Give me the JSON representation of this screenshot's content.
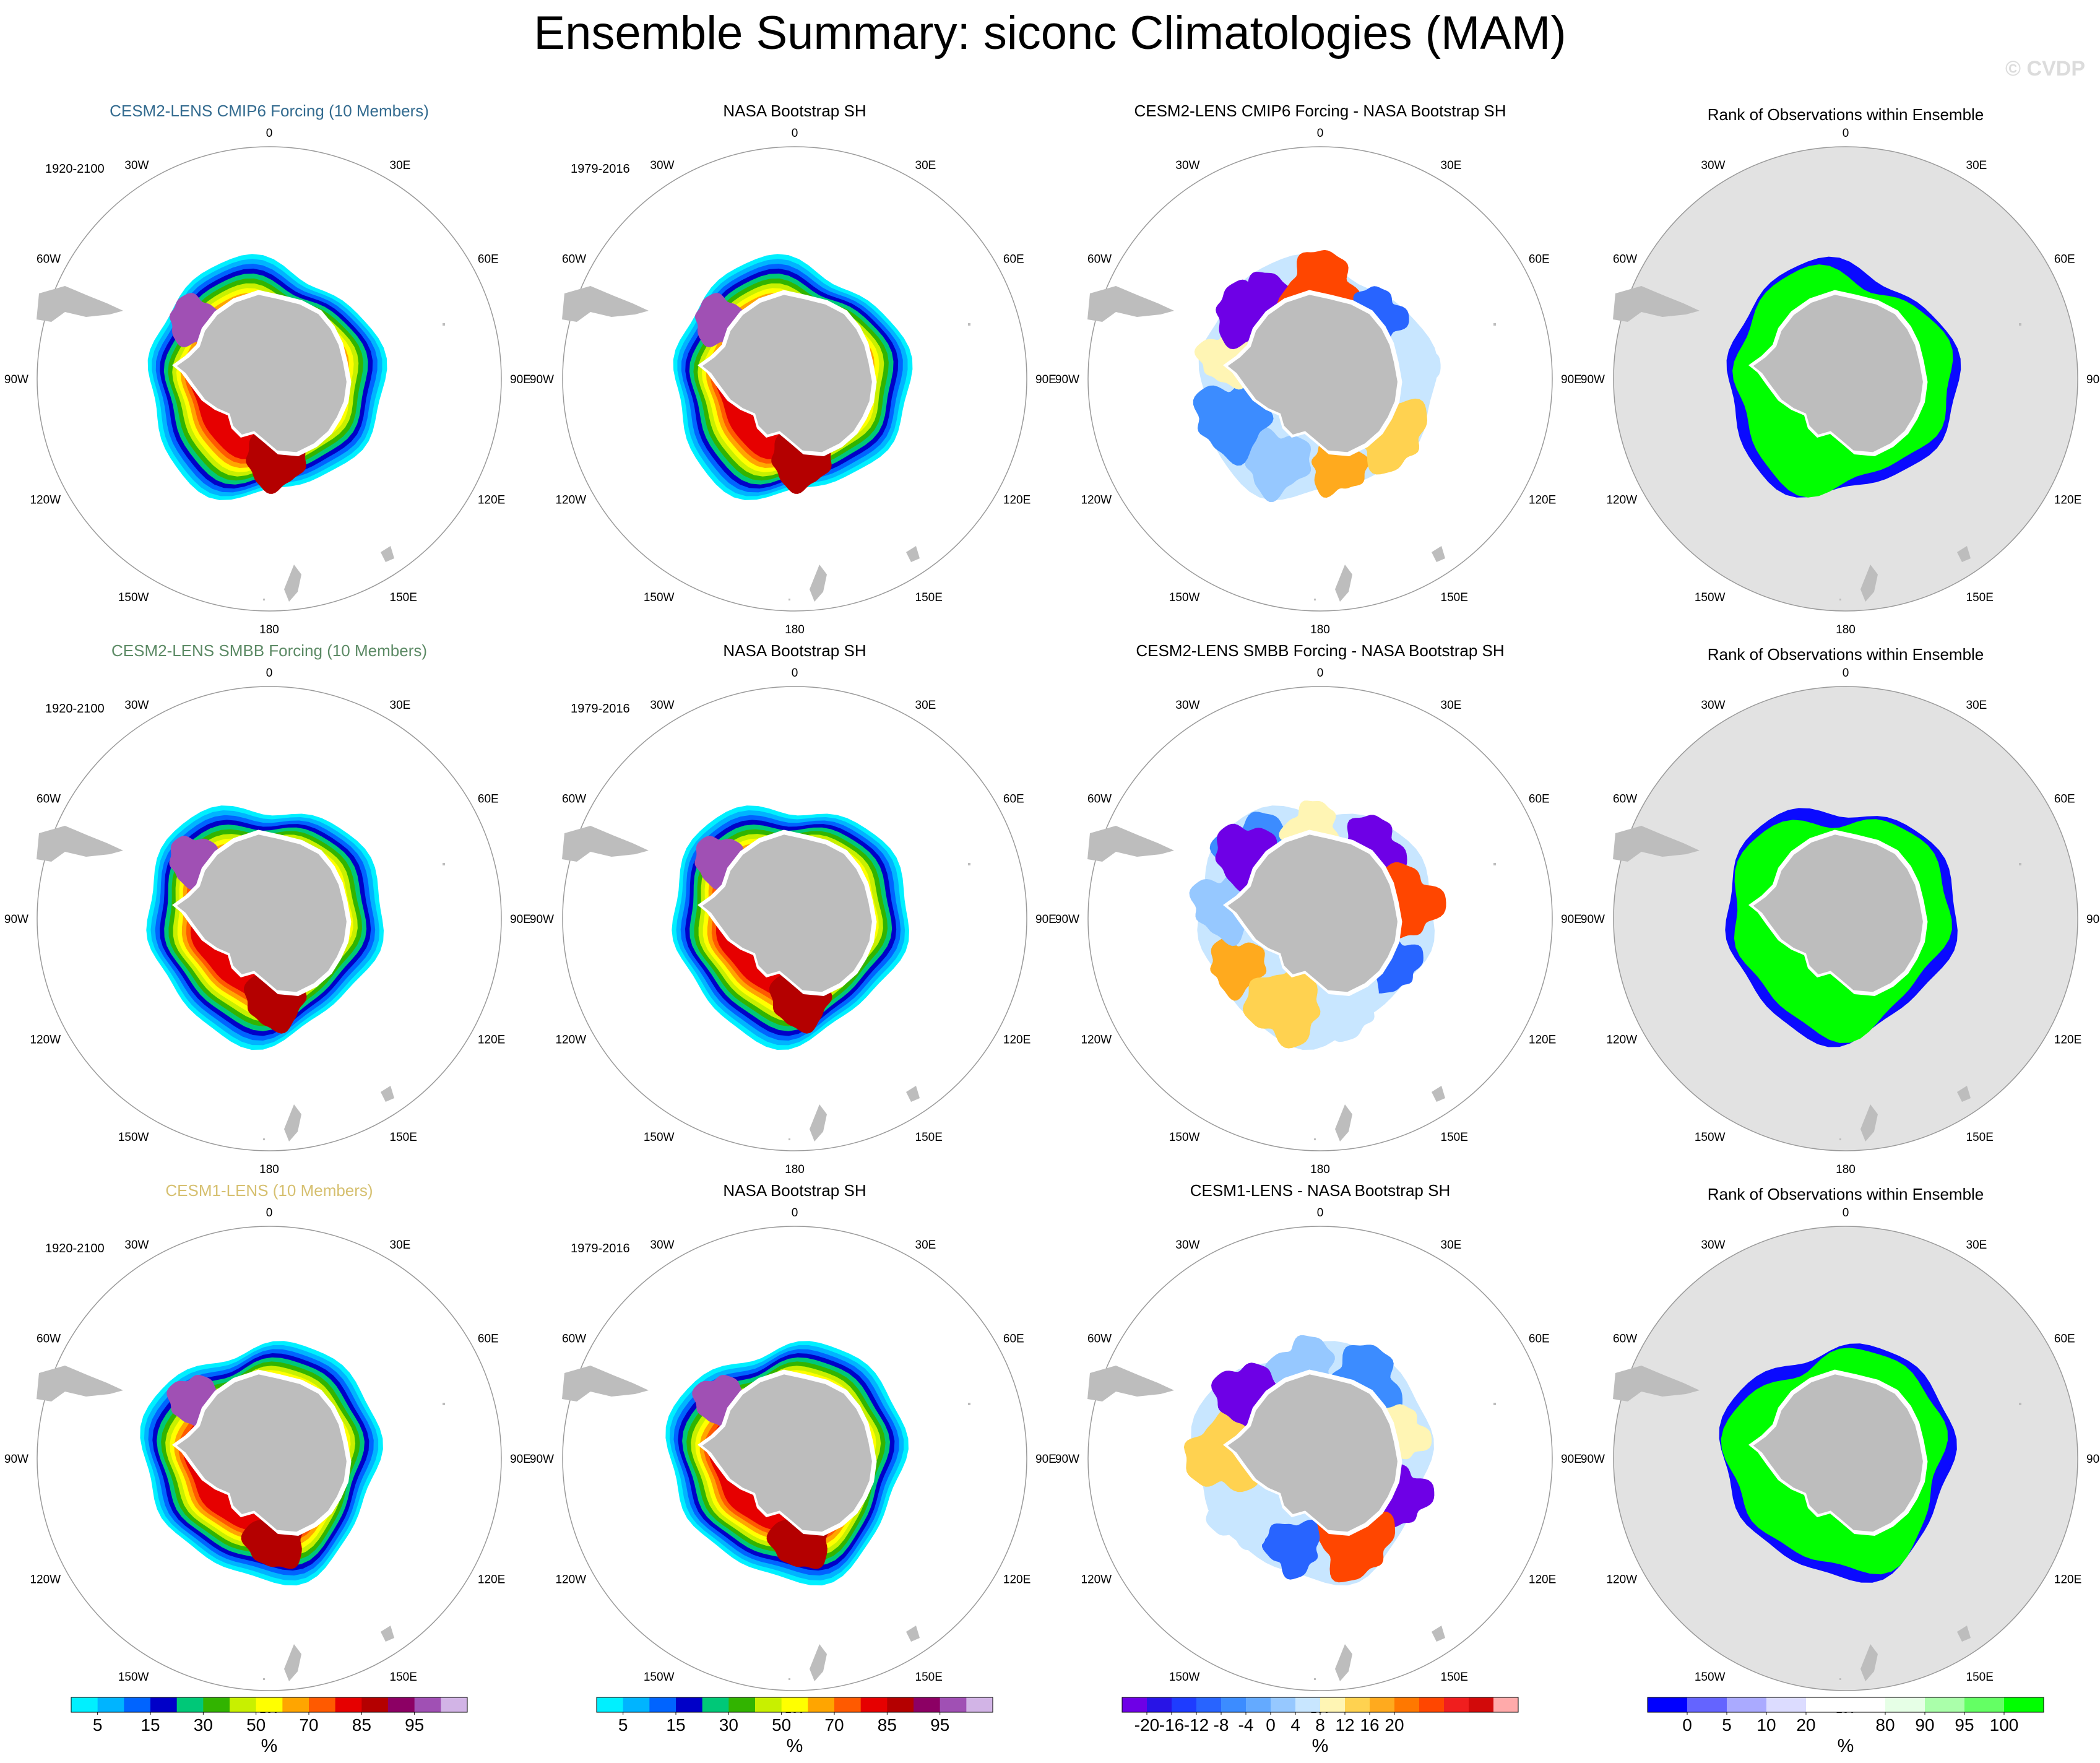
{
  "title": "Ensemble Summary: siconc Climatologies (MAM)",
  "watermark": "© CVDP",
  "colors": {
    "land": "#bdbdbd",
    "ocean_rank": "#e2e2e2",
    "rank_low": "#0a0aff",
    "rank_high": "#00ff00",
    "row_titles": [
      "#336b8f",
      "#5c8a65",
      "#d6c070"
    ]
  },
  "lon_labels": [
    "0",
    "30E",
    "60E",
    "90E",
    "120E",
    "150E",
    "180",
    "150W",
    "120W",
    "90W",
    "60W",
    "30W"
  ],
  "chart_data": {
    "type": "heatmap",
    "projection": "south polar stereographic",
    "variable": "siconc",
    "season": "MAM",
    "panels": [
      {
        "row": 1,
        "col": 1,
        "kind": "model",
        "title": "CESM2-LENS CMIP6 Forcing (10 Members)",
        "period": "1920-2100"
      },
      {
        "row": 1,
        "col": 2,
        "kind": "obs",
        "title": "NASA Bootstrap SH",
        "period": "1979-2016"
      },
      {
        "row": 1,
        "col": 3,
        "kind": "difference",
        "title": "CESM2-LENS CMIP6 Forcing - NASA Bootstrap SH",
        "period": ""
      },
      {
        "row": 1,
        "col": 4,
        "kind": "rank",
        "title": "Rank of Observations within Ensemble",
        "period": ""
      },
      {
        "row": 2,
        "col": 1,
        "kind": "model",
        "title": "CESM2-LENS SMBB Forcing (10 Members)",
        "period": "1920-2100"
      },
      {
        "row": 2,
        "col": 2,
        "kind": "obs",
        "title": "NASA Bootstrap SH",
        "period": "1979-2016"
      },
      {
        "row": 2,
        "col": 3,
        "kind": "difference",
        "title": "CESM2-LENS SMBB Forcing - NASA Bootstrap SH",
        "period": ""
      },
      {
        "row": 2,
        "col": 4,
        "kind": "rank",
        "title": "Rank of Observations within Ensemble",
        "period": ""
      },
      {
        "row": 3,
        "col": 1,
        "kind": "model",
        "title": "CESM1-LENS (10 Members)",
        "period": "1920-2100"
      },
      {
        "row": 3,
        "col": 2,
        "kind": "obs",
        "title": "NASA Bootstrap SH",
        "period": "1979-2016"
      },
      {
        "row": 3,
        "col": 3,
        "kind": "difference",
        "title": "CESM1-LENS - NASA Bootstrap SH",
        "period": ""
      },
      {
        "row": 3,
        "col": 4,
        "kind": "rank",
        "title": "Rank of Observations within Ensemble",
        "period": ""
      }
    ],
    "colorbars": [
      {
        "col": 1,
        "unit": "%",
        "colors": [
          "#00f0ff",
          "#00b4ff",
          "#0064ff",
          "#0000c8",
          "#00c878",
          "#32b400",
          "#c8f000",
          "#ffff00",
          "#ffa500",
          "#ff5a00",
          "#e60000",
          "#b40000",
          "#8c0064",
          "#a050b4",
          "#d2b4e6"
        ],
        "labels": [
          "5",
          "15",
          "30",
          "50",
          "70",
          "85",
          "95"
        ],
        "label_at": [
          1,
          3,
          5,
          7,
          9,
          11,
          13
        ]
      },
      {
        "col": 2,
        "unit": "%",
        "colors": [
          "#00f0ff",
          "#00b4ff",
          "#0064ff",
          "#0000c8",
          "#00c878",
          "#32b400",
          "#c8f000",
          "#ffff00",
          "#ffa500",
          "#ff5a00",
          "#e60000",
          "#b40000",
          "#8c0064",
          "#a050b4",
          "#d2b4e6"
        ],
        "labels": [
          "5",
          "15",
          "30",
          "50",
          "70",
          "85",
          "95"
        ],
        "label_at": [
          1,
          3,
          5,
          7,
          9,
          11,
          13
        ]
      },
      {
        "col": 3,
        "unit": "%",
        "colors": [
          "#6e00e6",
          "#2814e6",
          "#1e3cff",
          "#2864ff",
          "#3c8cff",
          "#64aaff",
          "#96c8ff",
          "#c8e6ff",
          "#fff5b4",
          "#ffd250",
          "#ffaa1e",
          "#ff7800",
          "#ff4600",
          "#f01e1e",
          "#d20a0a",
          "#ffaaaa"
        ],
        "labels": [
          "-20",
          "-16",
          "-12",
          "-8",
          "-4",
          "0",
          "4",
          "8",
          "12",
          "16",
          "20"
        ],
        "label_at": [
          1,
          2,
          3,
          4,
          5,
          6,
          7,
          8,
          9,
          10,
          11
        ]
      },
      {
        "col": 4,
        "unit": "%",
        "colors": [
          "#0000ff",
          "#6464ff",
          "#aaaaff",
          "#dcdcff",
          "#ffffff",
          "#ffffff",
          "#e6ffe6",
          "#aaffaa",
          "#64ff64",
          "#00ff00"
        ],
        "labels": [
          "0",
          "5",
          "10",
          "20",
          "80",
          "90",
          "95",
          "100"
        ],
        "label_at": [
          1,
          2,
          3,
          4,
          6,
          7,
          8,
          9
        ]
      }
    ]
  }
}
